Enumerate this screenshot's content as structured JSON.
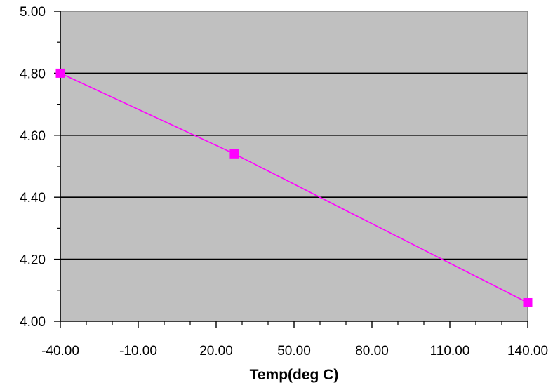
{
  "chart_data": {
    "type": "line",
    "title": "",
    "xlabel": "Temp(deg C)",
    "ylabel": "",
    "xlim": [
      -40,
      140
    ],
    "ylim": [
      4.0,
      5.0
    ],
    "x_ticks": [
      -40,
      -10,
      20,
      50,
      80,
      110,
      140
    ],
    "x_tick_labels": [
      "-40.00",
      "-10.00",
      "20.00",
      "50.00",
      "80.00",
      "110.00",
      "140.00"
    ],
    "y_ticks": [
      4.0,
      4.2,
      4.4,
      4.6,
      4.8,
      5.0
    ],
    "y_tick_labels": [
      "4.00",
      "4.20",
      "4.40",
      "4.60",
      "4.80",
      "5.00"
    ],
    "grid": "horizontal major gridlines",
    "legend": "none",
    "series": [
      {
        "x": [
          -40,
          27,
          140
        ],
        "values": [
          4.8,
          4.54,
          4.06
        ],
        "marker": "square"
      }
    ],
    "colors": {
      "plot_background": "#c0c0c0",
      "series": "#ff00ff",
      "gridline": "#000000",
      "frame": "#808080"
    }
  }
}
